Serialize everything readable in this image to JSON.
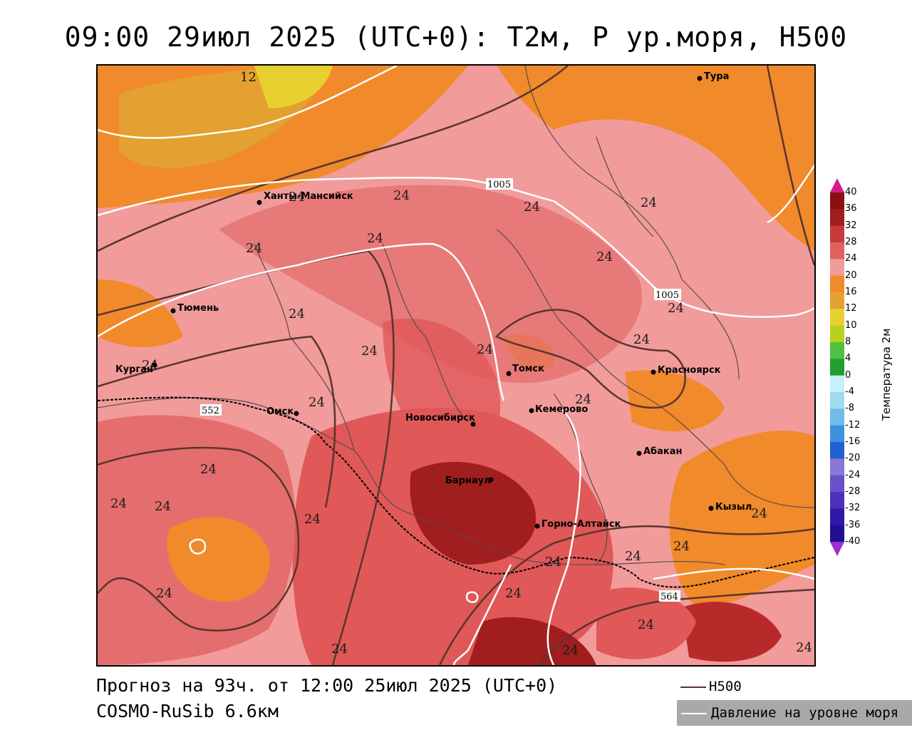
{
  "title": "09:00 29июл 2025 (UTC+0): T2м, P ур.моря, H500",
  "cities": [
    {
      "name": "Тура"
    },
    {
      "name": "Ханты-Мансийск"
    },
    {
      "name": "Тюмень"
    },
    {
      "name": "Курган"
    },
    {
      "name": "Омск"
    },
    {
      "name": "Томск"
    },
    {
      "name": "Красноярск"
    },
    {
      "name": "Кемерово"
    },
    {
      "name": "Новосибирск"
    },
    {
      "name": "Абакан"
    },
    {
      "name": "Барнаул"
    },
    {
      "name": "Кызыл"
    },
    {
      "name": "Горно-Алтайск"
    }
  ],
  "isotherm_label": "24",
  "north_isotherm_label": "12",
  "pressure_labels": [
    "1005",
    "1005"
  ],
  "h500_labels": [
    "552",
    "564"
  ],
  "colorbar": {
    "ticks": [
      "40",
      "36",
      "32",
      "28",
      "24",
      "20",
      "16",
      "12",
      "10",
      "8",
      "4",
      "0",
      "-4",
      "-8",
      "-12",
      "-16",
      "-20",
      "-24",
      "-28",
      "-32",
      "-36",
      "-40"
    ],
    "colors": [
      "#8c1010",
      "#a01e1e",
      "#c83a3a",
      "#e06060",
      "#f29b9b",
      "#f08a2a",
      "#e4a030",
      "#e8d030",
      "#b8d020",
      "#50c040",
      "#20a030",
      "#c8f0f8",
      "#a0dcf0",
      "#70bce8",
      "#4090e0",
      "#2060d0",
      "#8878d8",
      "#6a50c8",
      "#5030b8",
      "#3018a8",
      "#201090"
    ],
    "title": "Температура 2м"
  },
  "footer": {
    "forecast": "Прогноз на 93ч. от 12:00 25июл 2025 (UTC+0)",
    "model": "COSMO-RuSib 6.6км"
  },
  "legend": {
    "h500": "H500",
    "pressure": "Давление на уровне моря"
  }
}
